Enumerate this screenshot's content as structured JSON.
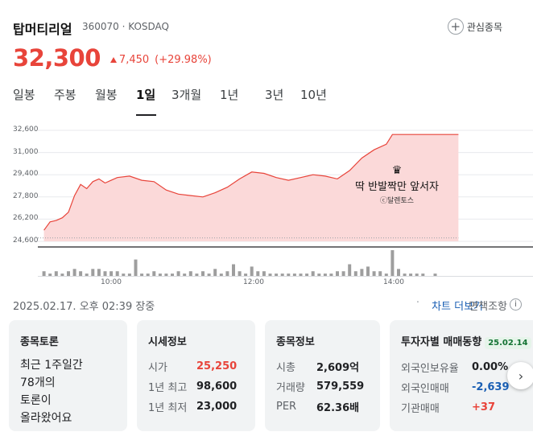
{
  "stock": {
    "name": "탑머티리얼",
    "code_market": "360070 · KOSDAQ",
    "price": "32,300",
    "change_amount": "7,450",
    "change_percent": "(+29.98%)",
    "watchlist_label": "관심종목"
  },
  "tabs": [
    {
      "label": "일봉"
    },
    {
      "label": "주봉"
    },
    {
      "label": "월봉"
    },
    {
      "label": "1일",
      "active": true
    },
    {
      "label": "3개월"
    },
    {
      "label": "1년"
    },
    {
      "label": "3년"
    },
    {
      "label": "10년"
    }
  ],
  "chart_data": {
    "type": "area",
    "y_ticks": [
      "32,600",
      "31,000",
      "29,400",
      "27,800",
      "26,200",
      "24,600"
    ],
    "x_ticks": [
      "10:00",
      "12:00",
      "14:00"
    ],
    "ylim": [
      24600,
      32600
    ],
    "prev_close": 24850,
    "price_series": [
      {
        "t": "09:00",
        "v": 25400
      },
      {
        "t": "09:05",
        "v": 26000
      },
      {
        "t": "09:10",
        "v": 26100
      },
      {
        "t": "09:15",
        "v": 26300
      },
      {
        "t": "09:20",
        "v": 26700
      },
      {
        "t": "09:25",
        "v": 27900
      },
      {
        "t": "09:30",
        "v": 28700
      },
      {
        "t": "09:35",
        "v": 28400
      },
      {
        "t": "09:40",
        "v": 28900
      },
      {
        "t": "09:45",
        "v": 29100
      },
      {
        "t": "09:50",
        "v": 28800
      },
      {
        "t": "09:55",
        "v": 29000
      },
      {
        "t": "10:00",
        "v": 29200
      },
      {
        "t": "10:10",
        "v": 29300
      },
      {
        "t": "10:20",
        "v": 29000
      },
      {
        "t": "10:30",
        "v": 28900
      },
      {
        "t": "10:40",
        "v": 28300
      },
      {
        "t": "10:50",
        "v": 28000
      },
      {
        "t": "11:00",
        "v": 27900
      },
      {
        "t": "11:10",
        "v": 27800
      },
      {
        "t": "11:20",
        "v": 28100
      },
      {
        "t": "11:30",
        "v": 28500
      },
      {
        "t": "11:40",
        "v": 29100
      },
      {
        "t": "11:50",
        "v": 29600
      },
      {
        "t": "12:00",
        "v": 29500
      },
      {
        "t": "12:10",
        "v": 29200
      },
      {
        "t": "12:20",
        "v": 29000
      },
      {
        "t": "12:30",
        "v": 29200
      },
      {
        "t": "12:40",
        "v": 29400
      },
      {
        "t": "12:50",
        "v": 29300
      },
      {
        "t": "13:00",
        "v": 29100
      },
      {
        "t": "13:10",
        "v": 29700
      },
      {
        "t": "13:20",
        "v": 30600
      },
      {
        "t": "13:30",
        "v": 31200
      },
      {
        "t": "13:40",
        "v": 31600
      },
      {
        "t": "13:45",
        "v": 32300
      },
      {
        "t": "13:50",
        "v": 32300
      },
      {
        "t": "14:00",
        "v": 32300
      },
      {
        "t": "14:20",
        "v": 32300
      },
      {
        "t": "14:39",
        "v": 32300
      }
    ],
    "volume_series": [
      {
        "t": "09:00",
        "v": 2
      },
      {
        "t": "09:05",
        "v": 1
      },
      {
        "t": "09:10",
        "v": 2
      },
      {
        "t": "09:15",
        "v": 1
      },
      {
        "t": "09:20",
        "v": 2
      },
      {
        "t": "09:25",
        "v": 3
      },
      {
        "t": "09:30",
        "v": 2
      },
      {
        "t": "09:35",
        "v": 1
      },
      {
        "t": "09:40",
        "v": 3
      },
      {
        "t": "09:45",
        "v": 3
      },
      {
        "t": "09:50",
        "v": 2
      },
      {
        "t": "09:55",
        "v": 2
      },
      {
        "t": "10:00",
        "v": 2
      },
      {
        "t": "10:05",
        "v": 1
      },
      {
        "t": "10:10",
        "v": 1
      },
      {
        "t": "10:15",
        "v": 7
      },
      {
        "t": "10:20",
        "v": 1
      },
      {
        "t": "10:25",
        "v": 1
      },
      {
        "t": "10:30",
        "v": 2
      },
      {
        "t": "10:35",
        "v": 1
      },
      {
        "t": "10:40",
        "v": 1
      },
      {
        "t": "10:45",
        "v": 1
      },
      {
        "t": "10:50",
        "v": 2
      },
      {
        "t": "10:55",
        "v": 1
      },
      {
        "t": "11:00",
        "v": 2
      },
      {
        "t": "11:05",
        "v": 1
      },
      {
        "t": "11:10",
        "v": 2
      },
      {
        "t": "11:15",
        "v": 1
      },
      {
        "t": "11:20",
        "v": 3
      },
      {
        "t": "11:25",
        "v": 1
      },
      {
        "t": "11:30",
        "v": 2
      },
      {
        "t": "11:35",
        "v": 5
      },
      {
        "t": "11:40",
        "v": 2
      },
      {
        "t": "11:45",
        "v": 1
      },
      {
        "t": "11:50",
        "v": 4
      },
      {
        "t": "11:55",
        "v": 2
      },
      {
        "t": "12:00",
        "v": 2
      },
      {
        "t": "12:05",
        "v": 1
      },
      {
        "t": "12:10",
        "v": 1
      },
      {
        "t": "12:15",
        "v": 1
      },
      {
        "t": "12:20",
        "v": 1
      },
      {
        "t": "12:25",
        "v": 1
      },
      {
        "t": "12:30",
        "v": 1
      },
      {
        "t": "12:35",
        "v": 1
      },
      {
        "t": "12:40",
        "v": 2
      },
      {
        "t": "12:45",
        "v": 1
      },
      {
        "t": "12:50",
        "v": 1
      },
      {
        "t": "12:55",
        "v": 1
      },
      {
        "t": "13:00",
        "v": 2
      },
      {
        "t": "13:05",
        "v": 2
      },
      {
        "t": "13:10",
        "v": 5
      },
      {
        "t": "13:15",
        "v": 2
      },
      {
        "t": "13:20",
        "v": 3
      },
      {
        "t": "13:25",
        "v": 4
      },
      {
        "t": "13:30",
        "v": 2
      },
      {
        "t": "13:35",
        "v": 2
      },
      {
        "t": "13:40",
        "v": 1
      },
      {
        "t": "13:45",
        "v": 11
      },
      {
        "t": "13:50",
        "v": 3
      },
      {
        "t": "13:55",
        "v": 1
      },
      {
        "t": "14:00",
        "v": 1
      },
      {
        "t": "14:05",
        "v": 1
      },
      {
        "t": "14:10",
        "v": 1
      },
      {
        "t": "14:20",
        "v": 1
      }
    ],
    "watermark_title": "딱 반발짝만 앞서자",
    "watermark_sub": "ⓒ달렌토스",
    "watermark_icon": "crown-icon",
    "colors": {
      "line": "#e8443a",
      "fill": "#fbd9d9",
      "volume": "#9e9e9e",
      "baseline": "#9aa0a6"
    }
  },
  "info": {
    "datetime": "2025.02.17. 오후 02:39 장중",
    "chart_more": "차트 더보기",
    "disclaimer": "면책조항",
    "info_icon": "i"
  },
  "cards": {
    "forum": {
      "title": "종목토론",
      "lines": [
        "최근 1주일간",
        "78개의",
        "토론이",
        "올라왔어요"
      ]
    },
    "market": {
      "title": "시세정보",
      "rows": [
        {
          "k": "시가",
          "v": "25,250"
        },
        {
          "k": "1년 최고",
          "v": "98,600"
        },
        {
          "k": "1년 최저",
          "v": "23,000"
        }
      ]
    },
    "company": {
      "title": "종목정보",
      "rows": [
        {
          "k": "시총",
          "v": "2,609억"
        },
        {
          "k": "거래량",
          "v": "579,559"
        },
        {
          "k": "PER",
          "v": "62.36배"
        }
      ]
    },
    "investor": {
      "title": "투자자별 매매동향",
      "badge": "25.02.14",
      "rows": [
        {
          "k": "외국인보유율",
          "v": "0.00%"
        },
        {
          "k": "외국인매매",
          "v": "-2,639"
        },
        {
          "k": "기관매매",
          "v": "+37"
        }
      ]
    }
  },
  "next_icon": "chevron-right-icon"
}
